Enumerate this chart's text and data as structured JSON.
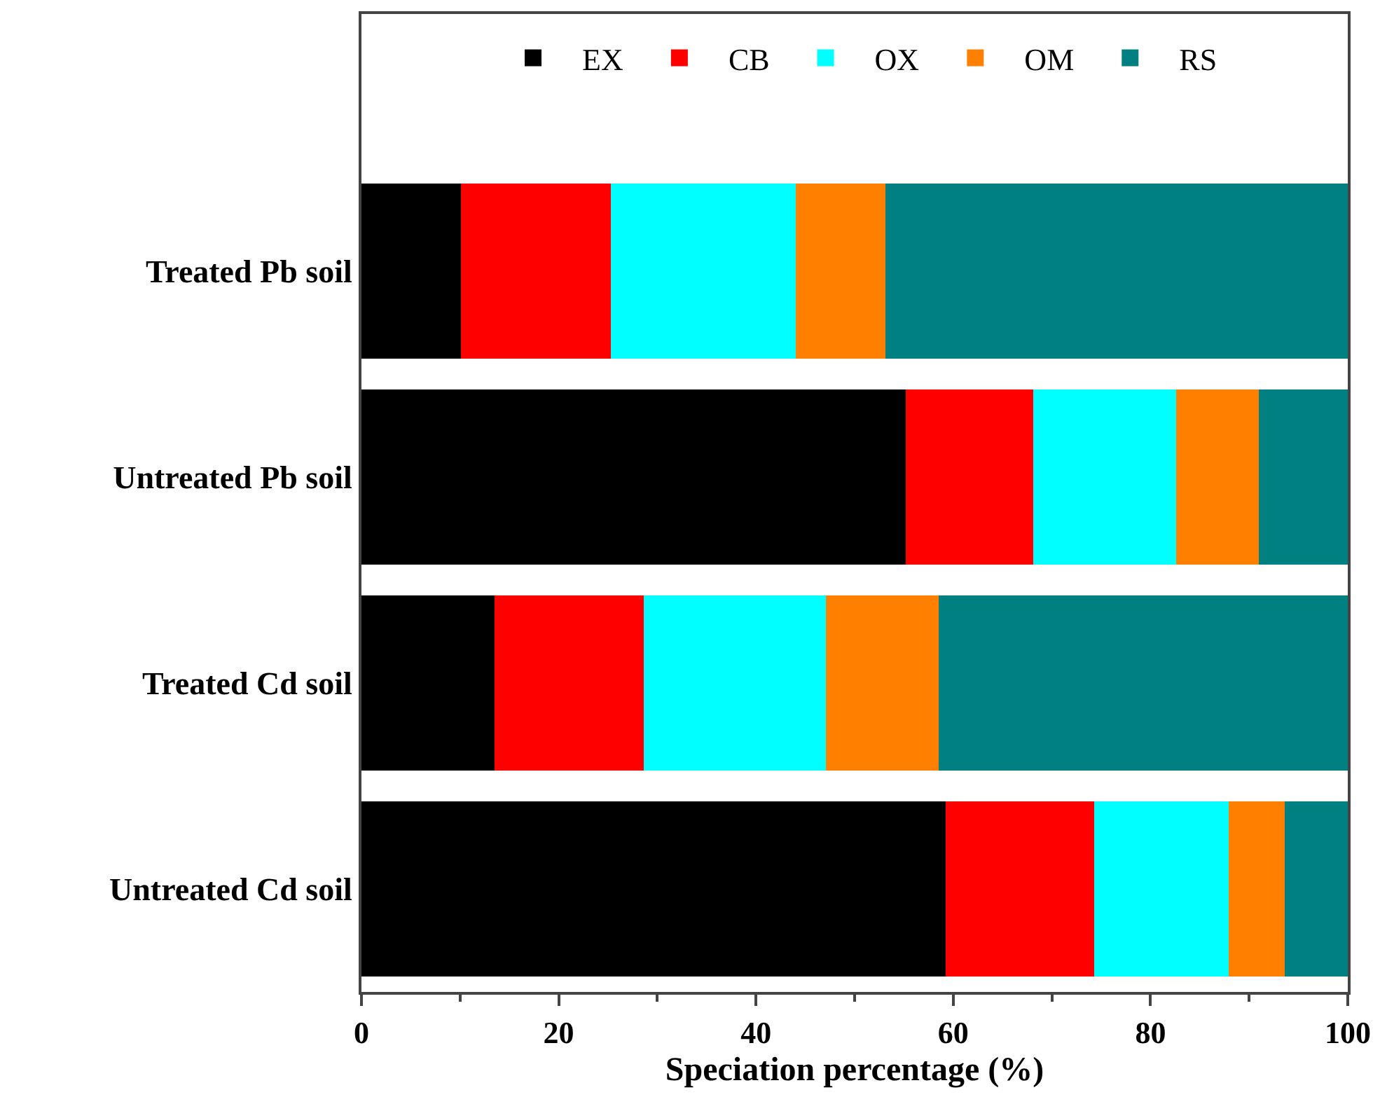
{
  "chart_data": {
    "type": "bar",
    "orientation": "horizontal",
    "stacked": true,
    "xlabel": "Speciation percentage (%)",
    "categories": [
      "Treated Pb soil",
      "Untreated Pb soil",
      "Treated Cd soil",
      "Untreated Cd soil"
    ],
    "series": [
      {
        "name": "EX",
        "color": "#000000",
        "values": [
          10.1,
          55.2,
          13.5,
          59.2
        ]
      },
      {
        "name": "CB",
        "color": "#ff0000",
        "values": [
          15.2,
          12.9,
          15.1,
          15.1
        ]
      },
      {
        "name": "OX",
        "color": "#00ffff",
        "values": [
          18.7,
          14.5,
          18.5,
          13.6
        ]
      },
      {
        "name": "OM",
        "color": "#ff8000",
        "values": [
          9.1,
          8.4,
          11.4,
          5.7
        ]
      },
      {
        "name": "RS",
        "color": "#008080",
        "values": [
          46.9,
          9.0,
          41.5,
          6.4
        ]
      }
    ],
    "xlim": [
      0,
      100
    ],
    "xticks": [
      0,
      20,
      40,
      60,
      80,
      100
    ],
    "grid": false,
    "legend": "top"
  }
}
